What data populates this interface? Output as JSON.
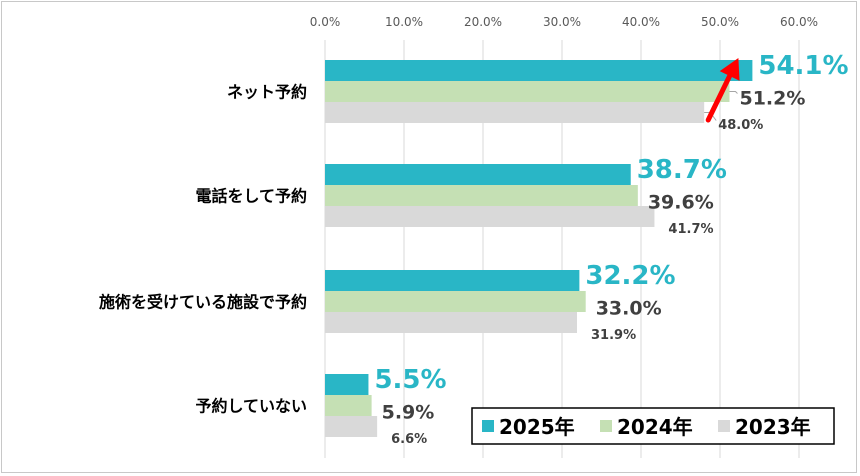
{
  "chart_data": {
    "type": "bar",
    "orientation": "horizontal",
    "categories": [
      "ネット予約",
      "電話をして予約",
      "施術を受けている施設で予約",
      "予約していない"
    ],
    "series": [
      {
        "name": "2025年",
        "color": "#29b6c6",
        "values": [
          54.1,
          38.7,
          32.2,
          5.5
        ],
        "labels": [
          "54.1%",
          "38.7%",
          "32.2%",
          "5.5%"
        ]
      },
      {
        "name": "2024年",
        "color": "#c5e0b4",
        "values": [
          51.2,
          39.6,
          33.0,
          5.9
        ],
        "labels": [
          "51.2%",
          "39.6%",
          "33.0%",
          "5.9%"
        ]
      },
      {
        "name": "2023年",
        "color": "#d9d9d9",
        "values": [
          48.0,
          41.7,
          31.9,
          6.6
        ],
        "labels": [
          "48.0%",
          "41.7%",
          "31.9%",
          "6.6%"
        ]
      }
    ],
    "xlim": [
      0,
      60
    ],
    "ticks": [
      0,
      10,
      20,
      30,
      40,
      50,
      60
    ],
    "tick_labels": [
      "0.0%",
      "10.0%",
      "20.0%",
      "30.0%",
      "40.0%",
      "50.0%",
      "60.0%"
    ],
    "grid": true,
    "legend_position": "bottom-right",
    "annotation": {
      "type": "arrow",
      "color": "#ff0000"
    }
  }
}
